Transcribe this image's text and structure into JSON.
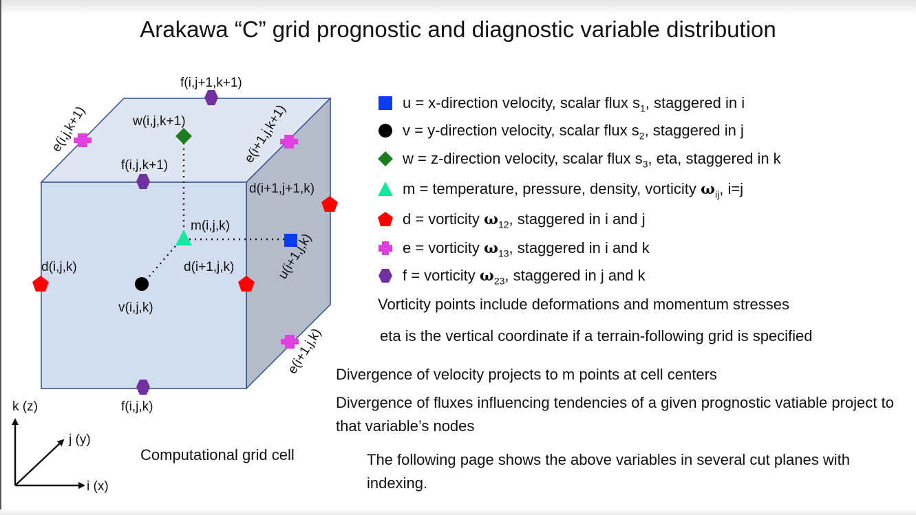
{
  "title": "Arakawa “C” grid prognostic and diagnostic variable distribution",
  "cube_labels": {
    "f_top": "f(i,j+1,k+1)",
    "e_left_top": "e(i,j,k+1)",
    "w": "w(i,j,k+1)",
    "e_right_top": "e(i+1,j,k+1)",
    "f_front_top": "f(i,j,k+1)",
    "d_back_right": "d(i+1,j+1,k)",
    "m": "m(i,j,k)",
    "u": "u(i+1,j,k)",
    "d_left": "d(i,j,k)",
    "d_front_right": "d(i+1,j,k)",
    "v": "v(i,j,k)",
    "e_bottom_right": "e(i+1,j,k)",
    "f_bottom": "f(i,j,k)"
  },
  "axes": {
    "k": "k (z)",
    "j": "j (y)",
    "i": "i (x)"
  },
  "caption": "Computational grid cell",
  "legend": [
    {
      "shape": "square-icon",
      "color": "#0a3cf0",
      "pre": "u = x-direction velocity, scalar flux s",
      "sub": "1",
      "post": ", staggered in i"
    },
    {
      "shape": "circle-icon",
      "color": "#000000",
      "pre": "v = y-direction velocity, scalar flux s",
      "sub": "2",
      "post": ", staggered in j"
    },
    {
      "shape": "diamond-icon",
      "color": "#1e7b1e",
      "pre": "w = z-direction velocity, scalar flux s",
      "sub": "3",
      "post": ", eta, staggered in k"
    },
    {
      "shape": "triangle-icon",
      "color": "#19e6a0",
      "pre": "m = temperature, pressure, density, vorticity ",
      "omega": "ω",
      "sub": "ij",
      "post": ", i=j"
    },
    {
      "shape": "pentagon-icon",
      "color": "#ff0000",
      "pre": "d = vorticity ",
      "omega": "ω",
      "sub": "12",
      "post": ", staggered in i and j"
    },
    {
      "shape": "cross-icon",
      "color": "#e040e0",
      "pre": "e = vorticity ",
      "omega": "ω",
      "sub": "13",
      "post": ", staggered in i and k"
    },
    {
      "shape": "hexagon-icon",
      "color": "#7030a0",
      "pre": "f = vorticity ",
      "omega": "ω",
      "sub": "23",
      "post": ", staggered in j and k"
    }
  ],
  "notes": {
    "vorticity": "Vorticity points include deformations and momentum stresses",
    "eta": "eta is the vertical coordinate if a terrain-following grid is specified",
    "divergence_velocity": "Divergence of velocity projects to m points at cell centers",
    "divergence_fluxes": "Divergence of fluxes influencing tendencies of a given prognostic vatiable project to that variable’s nodes",
    "following": "The following page shows the above variables in several cut planes with indexing."
  }
}
